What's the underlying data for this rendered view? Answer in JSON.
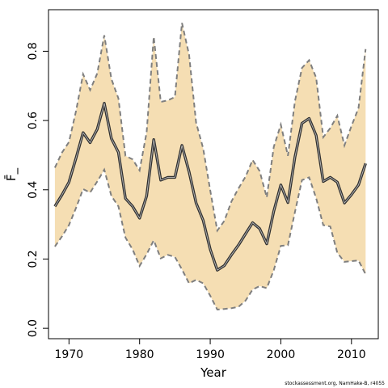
{
  "credit": "stockassessment.org, NamHake-B, r4055",
  "chart_data": {
    "type": "line",
    "title": "",
    "xlabel": "Year",
    "ylabel": "F̄_",
    "xlim": [
      1967.1,
      2013.8
    ],
    "ylim": [
      -0.03,
      0.92
    ],
    "xticks": [
      1970,
      1980,
      1990,
      2000,
      2010
    ],
    "yticks": [
      0.0,
      0.2,
      0.4,
      0.6,
      0.8
    ],
    "grid": false,
    "legend": "none",
    "colors": {
      "band": "#f5deb3",
      "bound": "#7f7f7f",
      "line": "#303030",
      "axis": "#000000"
    },
    "x": [
      1968,
      1969,
      1970,
      1971,
      1972,
      1973,
      1974,
      1975,
      1976,
      1977,
      1978,
      1979,
      1980,
      1981,
      1982,
      1983,
      1984,
      1985,
      1986,
      1987,
      1988,
      1989,
      1990,
      1991,
      1992,
      1993,
      1994,
      1995,
      1996,
      1997,
      1998,
      1999,
      2000,
      2001,
      2002,
      2003,
      2004,
      2005,
      2006,
      2007,
      2008,
      2009,
      2010,
      2011,
      2012
    ],
    "series": [
      {
        "role": "estimate",
        "values": [
          0.352,
          0.385,
          0.422,
          0.492,
          0.565,
          0.536,
          0.575,
          0.65,
          0.548,
          0.508,
          0.375,
          0.352,
          0.318,
          0.382,
          0.545,
          0.428,
          0.436,
          0.436,
          0.528,
          0.452,
          0.362,
          0.312,
          0.228,
          0.168,
          0.181,
          0.212,
          0.24,
          0.273,
          0.305,
          0.288,
          0.244,
          0.338,
          0.414,
          0.363,
          0.495,
          0.592,
          0.606,
          0.557,
          0.424,
          0.436,
          0.422,
          0.362,
          0.386,
          0.414,
          0.476
        ]
      },
      {
        "role": "upper",
        "values": [
          0.464,
          0.507,
          0.538,
          0.628,
          0.734,
          0.688,
          0.736,
          0.846,
          0.72,
          0.664,
          0.498,
          0.488,
          0.456,
          0.566,
          0.842,
          0.654,
          0.658,
          0.668,
          0.882,
          0.79,
          0.594,
          0.52,
          0.398,
          0.282,
          0.31,
          0.366,
          0.404,
          0.438,
          0.486,
          0.454,
          0.378,
          0.524,
          0.588,
          0.498,
          0.656,
          0.752,
          0.774,
          0.724,
          0.552,
          0.578,
          0.614,
          0.528,
          0.584,
          0.636,
          0.806
        ]
      },
      {
        "role": "lower",
        "values": [
          0.236,
          0.265,
          0.298,
          0.348,
          0.402,
          0.392,
          0.424,
          0.458,
          0.382,
          0.352,
          0.262,
          0.228,
          0.18,
          0.214,
          0.254,
          0.202,
          0.212,
          0.206,
          0.17,
          0.13,
          0.14,
          0.13,
          0.094,
          0.054,
          0.056,
          0.058,
          0.062,
          0.08,
          0.112,
          0.122,
          0.116,
          0.168,
          0.238,
          0.24,
          0.336,
          0.428,
          0.436,
          0.376,
          0.298,
          0.294,
          0.218,
          0.192,
          0.194,
          0.196,
          0.156
        ]
      }
    ]
  }
}
